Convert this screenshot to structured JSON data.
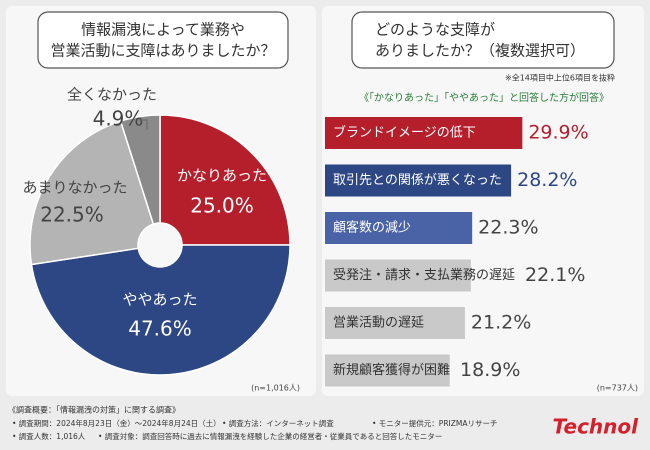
{
  "chart_data": [
    {
      "type": "pie",
      "title": [
        "情報漏洩によって業務や",
        "営業活動に支障はありましたか？"
      ],
      "categories": [
        "かなりあった",
        "ややあった",
        "あまりなかった",
        "全くなかった"
      ],
      "values": [
        25.0,
        47.6,
        22.5,
        4.9
      ],
      "value_labels": [
        "25.0%",
        "47.6%",
        "22.5%",
        "4.9%"
      ],
      "colors": [
        "#b51f2c",
        "#2d4785",
        "#b4b4b4",
        "#8a8a8a"
      ],
      "note": "(n=1,016人)"
    },
    {
      "type": "bar",
      "title": [
        "どのような支障が",
        "ありましたか？（複数選択可）"
      ],
      "note_top": "※全14項目中上位6項目を抜粋",
      "subtitle": "《「かなりあった」「ややあった」と回答した方が回答》",
      "categories": [
        "ブランドイメージの低下",
        "取引先との関係が悪くなった",
        "顧客数の減少",
        "受発注・請求・支払業務の遅延",
        "営業活動の遅延",
        "新規顧客獲得が困難"
      ],
      "values": [
        29.9,
        28.2,
        22.3,
        22.1,
        21.2,
        18.9
      ],
      "value_labels": [
        "29.9%",
        "28.2%",
        "22.3%",
        "22.1%",
        "21.2%",
        "18.9%"
      ],
      "colors": [
        "#b51f2c",
        "#2d4785",
        "#4a63a6",
        "#c9c9c9",
        "#c9c9c9",
        "#c9c9c9"
      ],
      "note": "(n=737人)"
    }
  ],
  "footer": {
    "heading": "《調査概要：「情報漏洩の対策」に関する調査》",
    "rows": [
      [
        "• 調査期間：2024年8月23日（金）～2024年8月24日（土）",
        "• 調査方法：インターネット調査",
        "• モニター提供元：PRIZMAリサーチ"
      ],
      [
        "• 調査人数：1,016人",
        "• 調査対象：調査回答時に過去に情報漏洩を経験した企業の経営者・従業員であると回答したモニター"
      ]
    ],
    "logo": "Technol"
  }
}
